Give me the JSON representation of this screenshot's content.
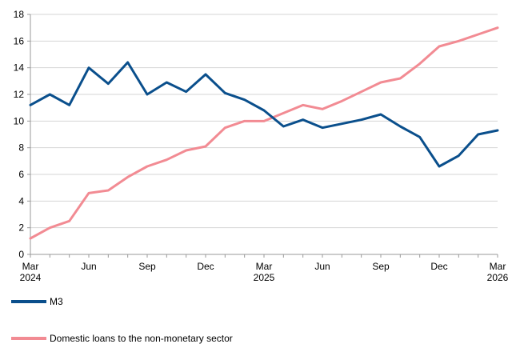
{
  "chart_data": {
    "type": "line",
    "title": "",
    "xlabel": "",
    "ylabel": "",
    "ylim": [
      0,
      18
    ],
    "yticks": [
      0,
      2,
      4,
      6,
      8,
      10,
      12,
      14,
      16,
      18
    ],
    "grid": true,
    "legend_position": "bottom-left",
    "x_tick_labels": [
      {
        "month": 0,
        "line1": "Mar",
        "line2": "2024"
      },
      {
        "month": 3,
        "line1": "Jun",
        "line2": ""
      },
      {
        "month": 6,
        "line1": "Sep",
        "line2": ""
      },
      {
        "month": 9,
        "line1": "Dec",
        "line2": ""
      },
      {
        "month": 12,
        "line1": "Mar",
        "line2": "2025"
      },
      {
        "month": 15,
        "line1": "Jun",
        "line2": ""
      },
      {
        "month": 18,
        "line1": "Sep",
        "line2": ""
      },
      {
        "month": 21,
        "line1": "Dec",
        "line2": ""
      },
      {
        "month": 24,
        "line1": "Mar",
        "line2": "2026"
      }
    ],
    "x": [
      "Mar 2024",
      "Apr 2024",
      "May 2024",
      "Jun 2024",
      "Jul 2024",
      "Aug 2024",
      "Sep 2024",
      "Oct 2024",
      "Nov 2024",
      "Dec 2024",
      "Jan 2025",
      "Feb 2025",
      "Mar 2025",
      "Apr 2025",
      "May 2025",
      "Jun 2025",
      "Jul 2025",
      "Aug 2025",
      "Sep 2025",
      "Oct 2025",
      "Nov 2025",
      "Dec 2025",
      "Jan 2026",
      "Feb 2026",
      "Mar 2026"
    ],
    "series": [
      {
        "name": "M3",
        "color": "#0a4f8c",
        "values": [
          11.2,
          12.0,
          11.2,
          14.0,
          12.8,
          14.4,
          12.0,
          12.9,
          12.2,
          13.5,
          12.1,
          11.6,
          10.8,
          9.6,
          10.1,
          9.5,
          9.8,
          10.1,
          10.5,
          9.6,
          8.8,
          6.6,
          7.4,
          9.0,
          9.3
        ]
      },
      {
        "name": "Domestic loans to the non-monetary sector",
        "color": "#f28b93",
        "values": [
          1.2,
          2.0,
          2.5,
          4.6,
          4.8,
          5.8,
          6.6,
          7.1,
          7.8,
          8.1,
          9.5,
          10.0,
          10.0,
          10.6,
          11.2,
          10.9,
          11.5,
          12.2,
          12.9,
          13.2,
          14.3,
          15.6,
          16.0,
          16.5,
          17.0
        ]
      }
    ]
  }
}
